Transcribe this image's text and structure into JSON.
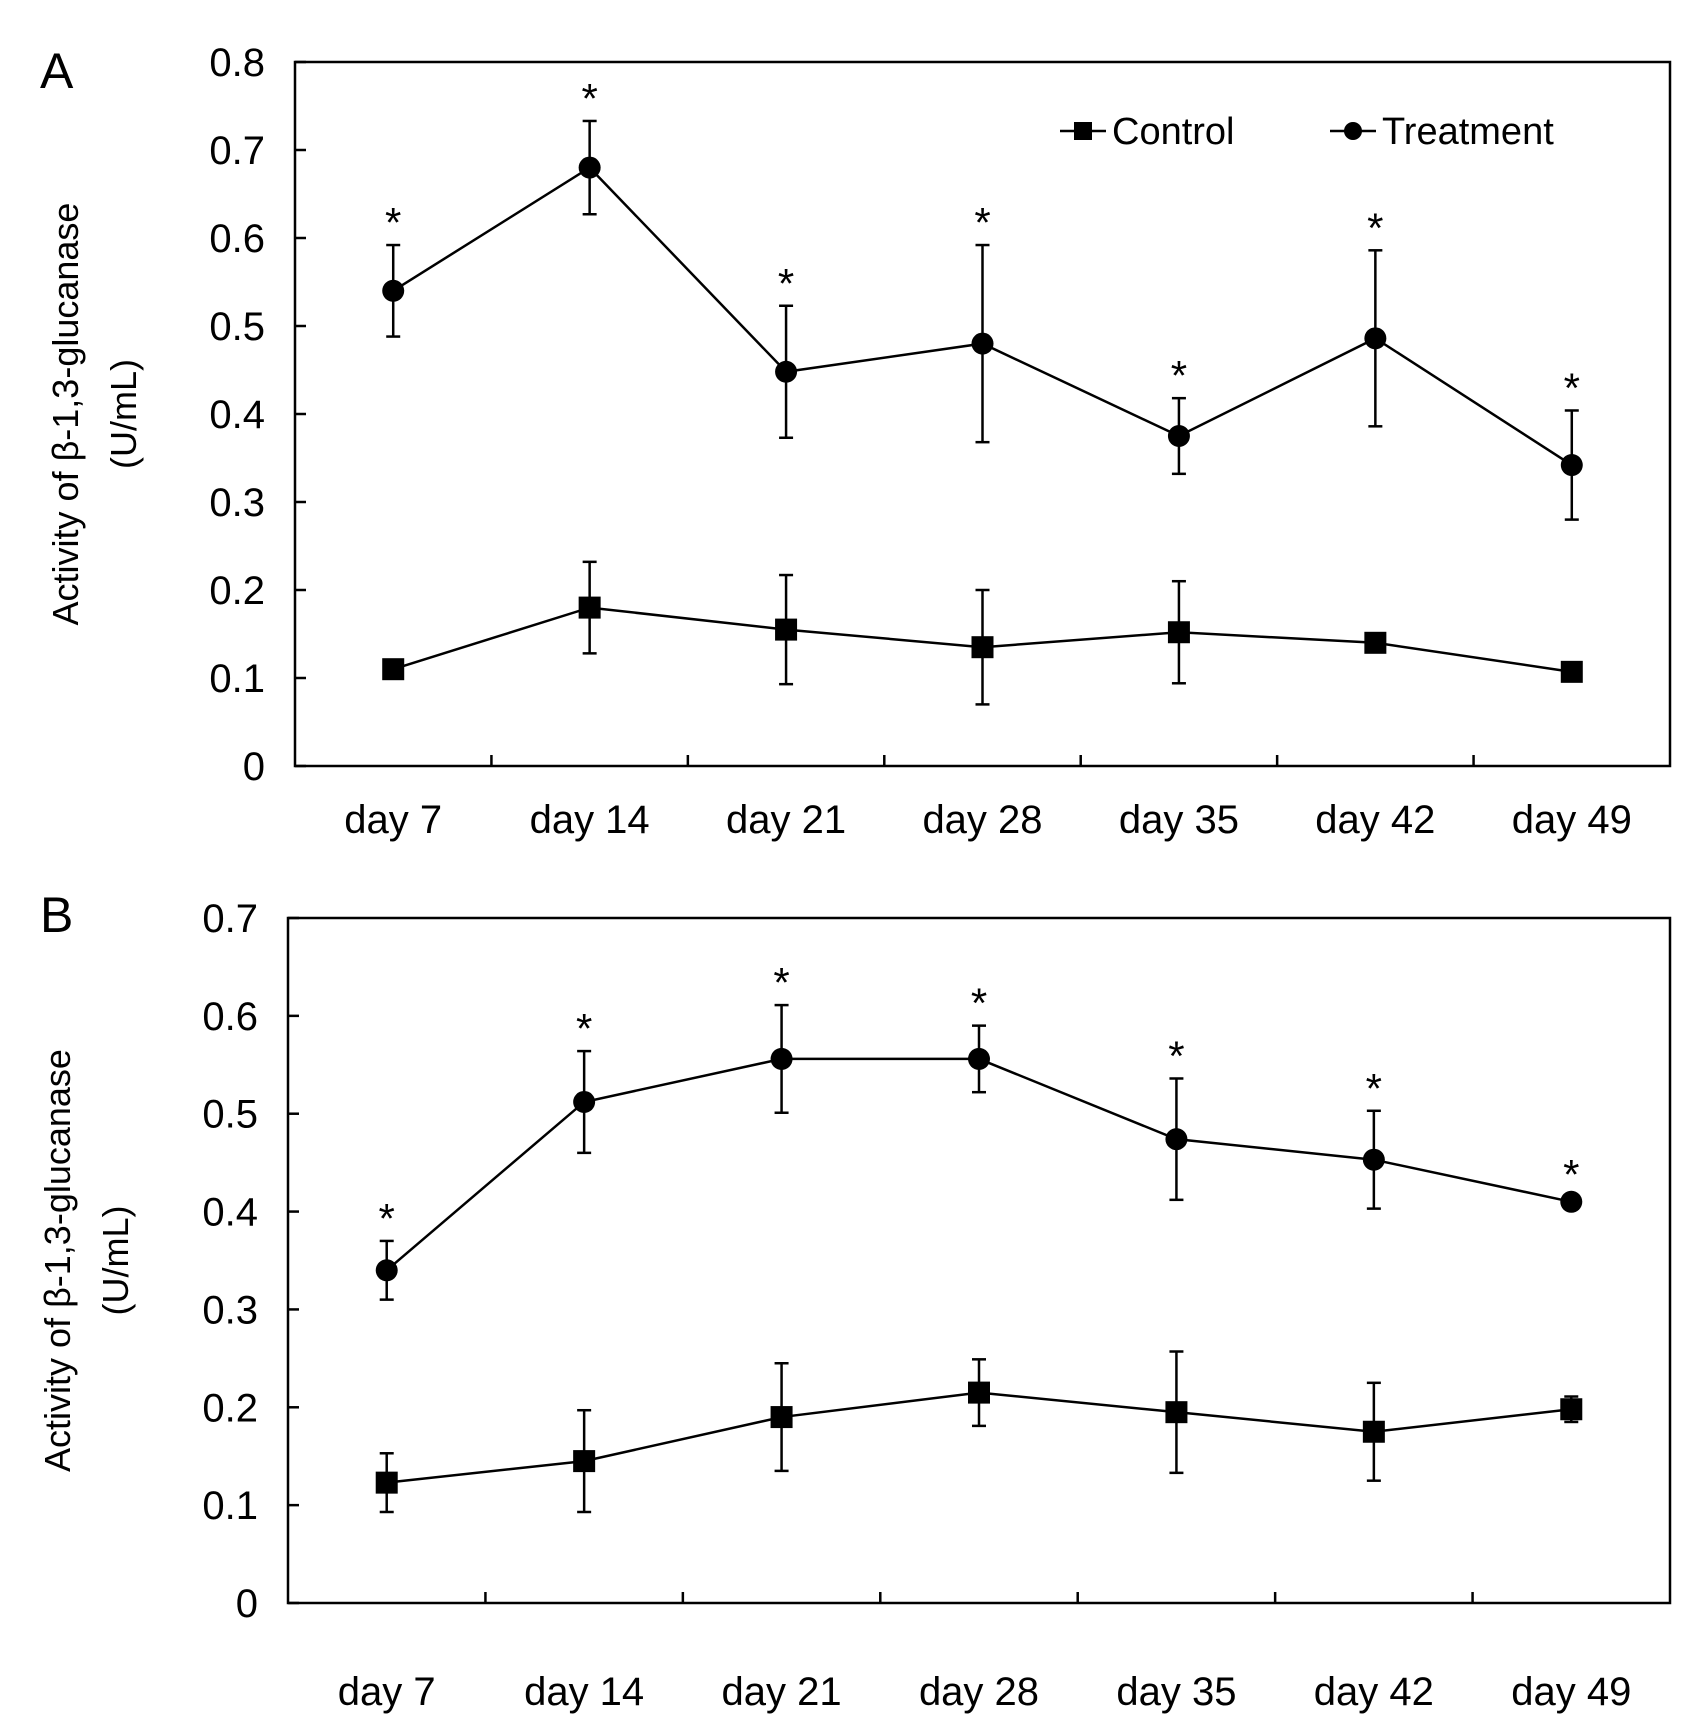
{
  "chart_data": [
    {
      "panel_label": "A",
      "type": "line",
      "categories": [
        "day 7",
        "day 14",
        "day 21",
        "day 28",
        "day 35",
        "day 42",
        "day 49"
      ],
      "ylabel": "Activity of β-1,3-glucanase",
      "ylabel_unit": "(U/mL)",
      "ylim": [
        0,
        0.8
      ],
      "yticks": [
        0,
        0.1,
        0.2,
        0.3,
        0.4,
        0.5,
        0.6,
        0.7,
        0.8
      ],
      "ytick_labels": [
        "0",
        "0.1",
        "0.2",
        "0.3",
        "0.4",
        "0.5",
        "0.6",
        "0.7",
        "0.8"
      ],
      "legend": {
        "position": "top-right"
      },
      "series": [
        {
          "name": "Control",
          "marker": "square",
          "values": [
            0.11,
            0.18,
            0.155,
            0.135,
            0.152,
            0.14,
            0.107
          ],
          "errors": [
            0,
            0.052,
            0.062,
            0.065,
            0.058,
            0,
            0
          ]
        },
        {
          "name": "Treatment",
          "marker": "circle",
          "values": [
            0.54,
            0.68,
            0.448,
            0.48,
            0.375,
            0.486,
            0.342
          ],
          "errors": [
            0.052,
            0.053,
            0.075,
            0.112,
            0.043,
            0.1,
            0.062
          ]
        }
      ],
      "significance": [
        "*",
        "*",
        "*",
        "*",
        "*",
        "*",
        "*"
      ]
    },
    {
      "panel_label": "B",
      "type": "line",
      "categories": [
        "day 7",
        "day 14",
        "day 21",
        "day 28",
        "day 35",
        "day 42",
        "day 49"
      ],
      "ylabel": "Activity of β-1,3-glucanase",
      "ylabel_unit": "(U/mL)",
      "ylim": [
        0,
        0.7
      ],
      "yticks": [
        0,
        0.1,
        0.2,
        0.3,
        0.4,
        0.5,
        0.6,
        0.7
      ],
      "ytick_labels": [
        "0",
        "0.1",
        "0.2",
        "0.3",
        "0.4",
        "0.5",
        "0.6",
        "0.7"
      ],
      "series": [
        {
          "name": "Control",
          "marker": "square",
          "values": [
            0.123,
            0.145,
            0.19,
            0.215,
            0.195,
            0.175,
            0.198
          ],
          "errors": [
            0.03,
            0.052,
            0.055,
            0.034,
            0.062,
            0.05,
            0.013
          ]
        },
        {
          "name": "Treatment",
          "marker": "circle",
          "values": [
            0.34,
            0.512,
            0.556,
            0.556,
            0.474,
            0.453,
            0.41
          ],
          "errors": [
            0.03,
            0.052,
            0.055,
            0.034,
            0.062,
            0.05,
            0.005
          ]
        }
      ],
      "significance": [
        "*",
        "*",
        "*",
        "*",
        "*",
        "*",
        "*"
      ]
    }
  ]
}
